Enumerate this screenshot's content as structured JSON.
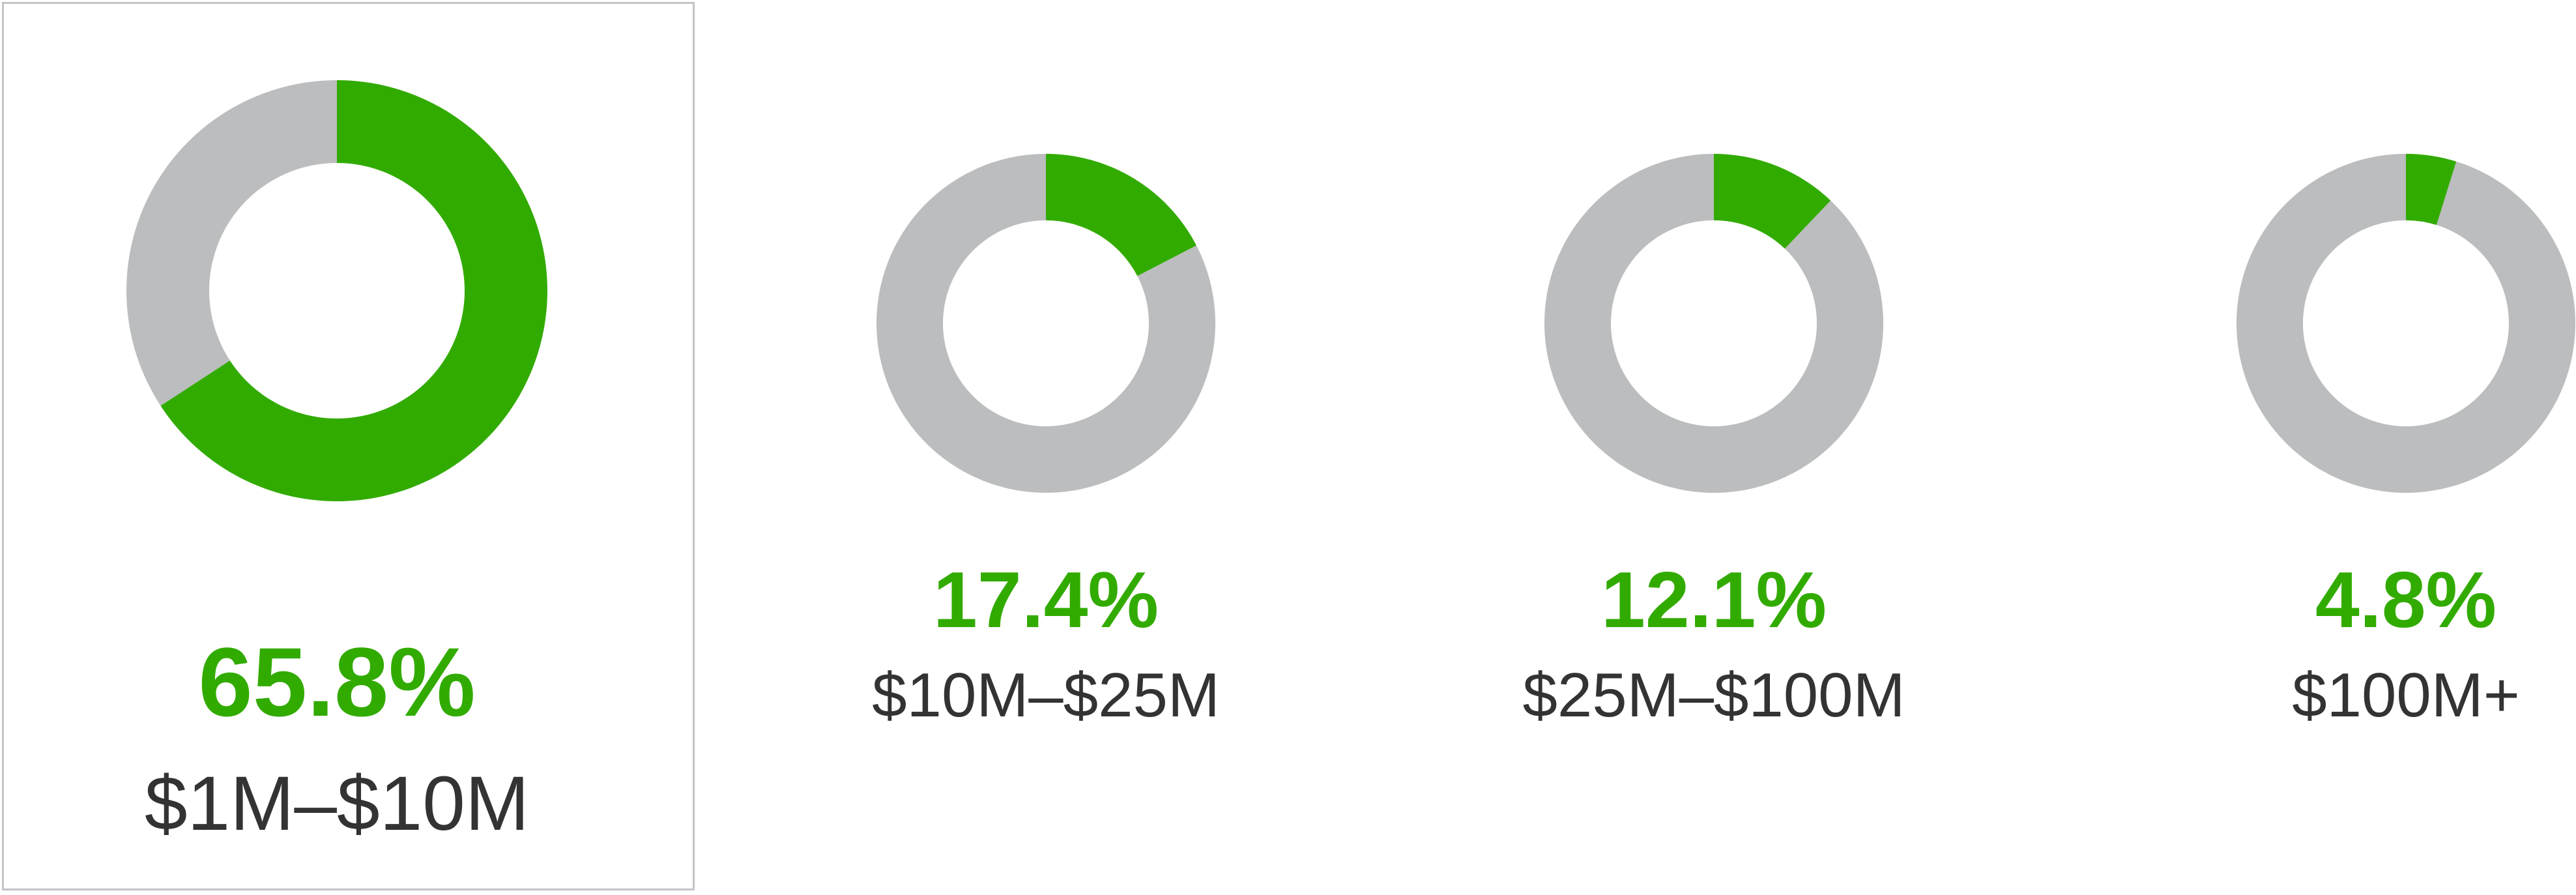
{
  "colors": {
    "value": "#32ab00",
    "remainder": "#bbbdbe",
    "label": "#333333",
    "frame": "#c4c4c4"
  },
  "chart_data": [
    {
      "type": "pie",
      "style": "donut",
      "category": "$1M–$10M",
      "value": 65.8,
      "value_label": "65.8%",
      "highlighted": true
    },
    {
      "type": "pie",
      "style": "donut",
      "category": "$10M–$25M",
      "value": 17.4,
      "value_label": "17.4%",
      "highlighted": false
    },
    {
      "type": "pie",
      "style": "donut",
      "category": "$25M–$100M",
      "value": 12.1,
      "value_label": "12.1%",
      "highlighted": false
    },
    {
      "type": "pie",
      "style": "donut",
      "category": "$100M+",
      "value": 4.8,
      "value_label": "4.8%",
      "highlighted": false
    }
  ]
}
